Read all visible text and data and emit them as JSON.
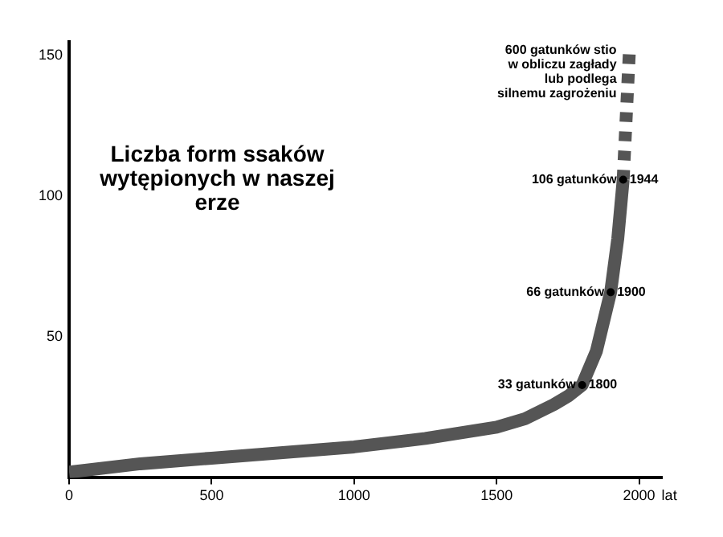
{
  "chart_data": {
    "type": "line",
    "title": "Liczba form ssaków\nwytępionych w naszej\nerze",
    "xlabel": "lat",
    "x": [
      0,
      250,
      500,
      750,
      1000,
      1250,
      1500,
      1600,
      1700,
      1750,
      1800,
      1850,
      1900,
      1925,
      1944
    ],
    "series": [
      {
        "color": "#555555",
        "values": [
          2,
          5,
          7,
          9,
          11,
          14,
          18,
          21,
          26,
          29,
          33,
          45,
          66,
          85,
          106
        ]
      },
      {
        "type": "line",
        "line_style": "dotted",
        "color": "#555555",
        "x": [
          1944,
          1966
        ],
        "values": [
          106,
          152
        ]
      },
      {
        "type": "scatter",
        "marker": "circle",
        "color": "#000000",
        "x": [
          1800,
          1900,
          1944
        ],
        "values": [
          33,
          66,
          106
        ],
        "value_labels": [
          "33 gatunków",
          "66 gatunków",
          "106 gatunków"
        ]
      }
    ],
    "annotations": [
      {
        "text": "1800",
        "x": 1800,
        "y": 33
      },
      {
        "text": "1900",
        "x": 1900,
        "y": 66
      },
      {
        "text": "1944",
        "x": 1944,
        "y": 106
      },
      {
        "text": "600 gatunków stio\nw obliczu zagłady\nlub podlega\nsilnemu zagrożeniu",
        "x": 1966,
        "y": 152
      }
    ],
    "xlim": [
      0,
      2080
    ],
    "xticks": [
      0,
      500,
      1000,
      1500,
      2000
    ],
    "ylim": [
      0,
      155
    ],
    "yticks": [
      50,
      100,
      150
    ],
    "grid": false,
    "legend": false
  }
}
